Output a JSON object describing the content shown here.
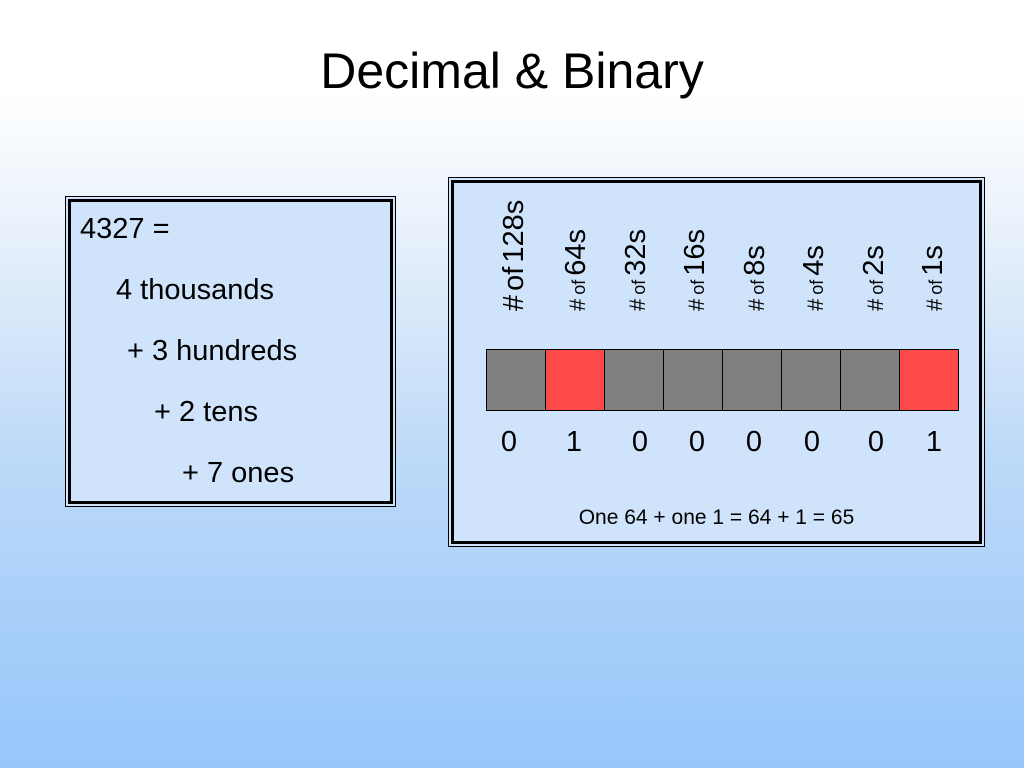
{
  "title": "Decimal & Binary",
  "decimal": {
    "lines": [
      "4327 =",
      "4 thousands",
      "+ 3 hundreds",
      "+ 2 tens",
      "+ 7 ones"
    ]
  },
  "binary": {
    "columns": [
      {
        "prefix": "#",
        "of": "of",
        "place": "128s",
        "digit": "0",
        "bit": 0
      },
      {
        "prefix": "#",
        "of": "of",
        "place": "64s",
        "digit": "1",
        "bit": 1
      },
      {
        "prefix": "#",
        "of": "of",
        "place": "32s",
        "digit": "0",
        "bit": 0
      },
      {
        "prefix": "#",
        "of": "of",
        "place": "16s",
        "digit": "0",
        "bit": 0
      },
      {
        "prefix": "#",
        "of": "of",
        "place": "8s",
        "digit": "0",
        "bit": 0
      },
      {
        "prefix": "#",
        "of": "of",
        "place": "4s",
        "digit": "0",
        "bit": 0
      },
      {
        "prefix": "#",
        "of": "of",
        "place": "2s",
        "digit": "0",
        "bit": 0
      },
      {
        "prefix": "#",
        "of": "of",
        "place": "1s",
        "digit": "1",
        "bit": 1
      }
    ],
    "caption": "One 64 + one 1 = 64 + 1 = 65",
    "colors": {
      "off": "#808080",
      "on": "#ff4a4a"
    }
  }
}
